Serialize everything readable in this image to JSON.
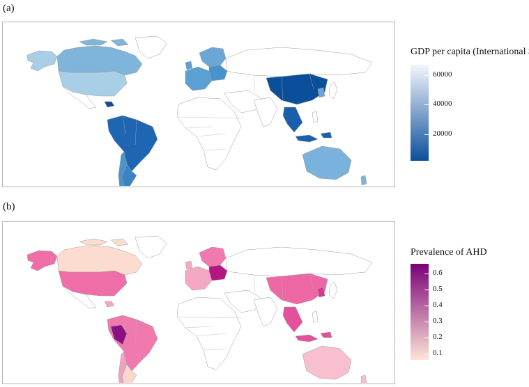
{
  "panels": [
    {
      "id": "a",
      "label": "(a)",
      "legend": {
        "title": "GDP per capita (International $)",
        "ticks": [
          "60000",
          "40000",
          "20000"
        ],
        "tick_values": [
          60000,
          40000,
          20000
        ],
        "range": [
          2000,
          67000
        ],
        "gradient_low": "#0b4f9a",
        "gradient_high": "#f4f6fc"
      },
      "colors": {
        "north_america": "#9fc9e3",
        "usa": "#a9cfe6",
        "canada": "#7fb4db",
        "alaska": "#a9cfe6",
        "latam": "#1f66b2",
        "cuba": "#0d4d96",
        "argentina": "#3a84c4",
        "chile": "#4b93cc",
        "uruguay": "#5a9fd1",
        "europe_north": "#6aa7d6",
        "europe_west": "#5ba0d2",
        "europe_central": "#4a92cb",
        "china": "#0b4f9a",
        "se_asia": "#1a5fab",
        "korea": "#6aa7d6",
        "australia": "#79b2dc",
        "nz": "#7fb4db"
      }
    },
    {
      "id": "b",
      "label": "(b)",
      "legend": {
        "title": "Prevalence of AHD",
        "ticks": [
          "0.6",
          "0.5",
          "0.4",
          "0.3",
          "0.2",
          "0.1"
        ],
        "tick_values": [
          0.6,
          0.5,
          0.4,
          0.3,
          0.2,
          0.1
        ],
        "range": [
          0.06,
          0.66
        ],
        "gradient_low": "#fde4d6",
        "gradient_high": "#7a0177"
      },
      "colors": {
        "north_america": "#fbe0d4",
        "usa": "#f06ea8",
        "canada": "#fcdccf",
        "alaska": "#f06ea8",
        "latam": "#f07ab0",
        "peru": "#8c0f82",
        "cuba": "#f4a6c4",
        "argentina": "#fbd8ce",
        "chile": "#f3a0c0",
        "uruguay": "#f7b9cd",
        "europe_north": "#f07ab0",
        "europe_west": "#f5a8c6",
        "europe_central": "#b3167f",
        "china": "#ee67a5",
        "se_asia": "#e4509b",
        "korea": "#d2398d",
        "australia": "#f8bfce",
        "nz": "#f8bfce"
      }
    }
  ]
}
